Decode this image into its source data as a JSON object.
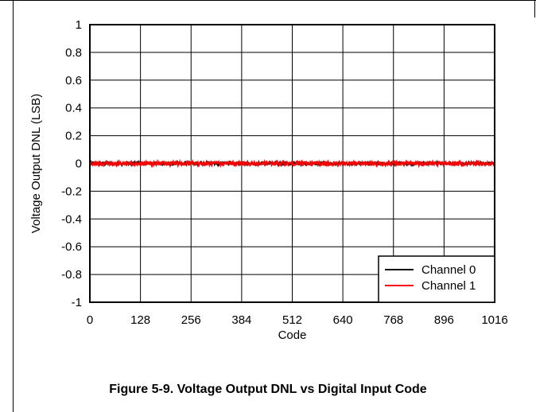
{
  "caption": "Figure 5-9. Voltage Output DNL vs Digital Input Code",
  "chart_data": {
    "type": "line",
    "xlabel": "Code",
    "ylabel": "Voltage Output DNL (LSB)",
    "xlim": [
      0,
      1016
    ],
    "ylim": [
      -1,
      1
    ],
    "xticks": [
      "0",
      "128",
      "256",
      "384",
      "512",
      "640",
      "768",
      "896",
      "1016"
    ],
    "yticks": [
      "1",
      "0.8",
      "0.6",
      "0.4",
      "0.2",
      "0",
      "-0.2",
      "-0.4",
      "-0.6",
      "-0.8",
      "-1"
    ],
    "grid": true,
    "legend_position": "bottom-right",
    "series": [
      {
        "name": "Channel 0",
        "color": "#000000",
        "approx_value": 0,
        "noise_amplitude": 0.012
      },
      {
        "name": "Channel 1",
        "color": "#ff0000",
        "approx_value": 0,
        "noise_amplitude": 0.015
      }
    ]
  }
}
